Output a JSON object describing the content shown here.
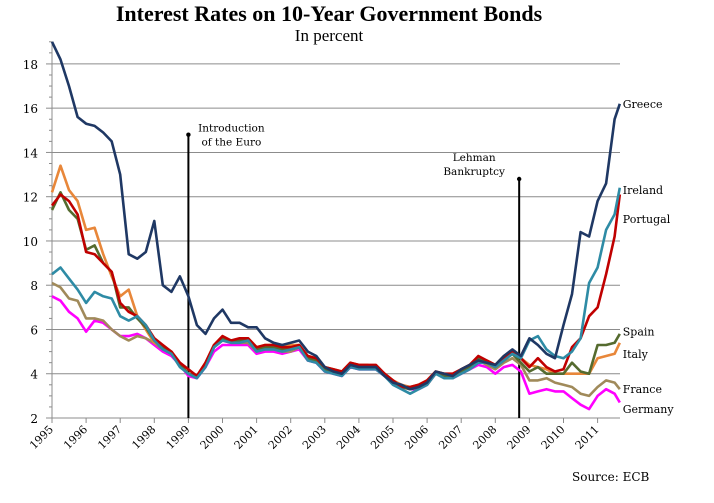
{
  "chart_data": {
    "type": "line",
    "title": "Interest Rates on 10-Year Government Bonds",
    "subtitle": "In percent",
    "xlabel": "",
    "ylabel": "",
    "xlim": [
      1995,
      2011.7
    ],
    "ylim": [
      2,
      19
    ],
    "yticks": [
      2,
      4,
      6,
      8,
      10,
      12,
      14,
      16,
      18
    ],
    "xticks": [
      1995,
      1996,
      1997,
      1998,
      1999,
      2000,
      2001,
      2002,
      2003,
      2004,
      2005,
      2006,
      2007,
      2008,
      2009,
      2010,
      2011
    ],
    "grid": true,
    "source": "Source: ECB",
    "annotations": [
      {
        "x": 1999.0,
        "y": 14.8,
        "lines": [
          "Introduction",
          "of the Euro"
        ]
      },
      {
        "x": 2008.7,
        "y": 12.8,
        "lines": [
          "Lehman",
          "Bankruptcy"
        ]
      }
    ],
    "series": [
      {
        "name": "Germany",
        "color": "#ff00ff",
        "label_y": 2.4,
        "x": [
          1995,
          1995.25,
          1995.5,
          1995.75,
          1996,
          1996.25,
          1996.5,
          1996.75,
          1997,
          1997.25,
          1997.5,
          1997.75,
          1998,
          1998.25,
          1998.5,
          1998.75,
          1999,
          1999.25,
          1999.5,
          1999.75,
          2000,
          2000.25,
          2000.5,
          2000.75,
          2001,
          2001.25,
          2001.5,
          2001.75,
          2002,
          2002.25,
          2002.5,
          2002.75,
          2003,
          2003.25,
          2003.5,
          2003.75,
          2004,
          2004.25,
          2004.5,
          2004.75,
          2005,
          2005.25,
          2005.5,
          2005.75,
          2006,
          2006.25,
          2006.5,
          2006.75,
          2007,
          2007.25,
          2007.5,
          2007.75,
          2008,
          2008.25,
          2008.5,
          2008.75,
          2009,
          2009.25,
          2009.5,
          2009.75,
          2010,
          2010.25,
          2010.5,
          2010.75,
          2011,
          2011.25,
          2011.5,
          2011.65
        ],
        "y": [
          7.5,
          7.3,
          6.8,
          6.5,
          5.9,
          6.4,
          6.3,
          6.0,
          5.7,
          5.7,
          5.8,
          5.6,
          5.3,
          5.0,
          4.8,
          4.4,
          3.9,
          3.8,
          4.3,
          5.0,
          5.3,
          5.3,
          5.3,
          5.3,
          4.9,
          5.0,
          5.0,
          4.9,
          5.0,
          5.1,
          4.6,
          4.5,
          4.1,
          4.0,
          3.9,
          4.3,
          4.2,
          4.2,
          4.2,
          3.9,
          3.6,
          3.4,
          3.3,
          3.3,
          3.5,
          4.0,
          3.9,
          3.8,
          4.0,
          4.2,
          4.4,
          4.3,
          4.0,
          4.3,
          4.4,
          4.1,
          3.1,
          3.2,
          3.3,
          3.2,
          3.2,
          2.9,
          2.6,
          2.4,
          3.0,
          3.3,
          3.1,
          2.7
        ]
      },
      {
        "name": "France",
        "color": "#a08a5a",
        "label_y": 3.3,
        "x": [
          1995,
          1995.25,
          1995.5,
          1995.75,
          1996,
          1996.25,
          1996.5,
          1996.75,
          1997,
          1997.25,
          1997.5,
          1997.75,
          1998,
          1998.25,
          1998.5,
          1998.75,
          1999,
          1999.25,
          1999.5,
          1999.75,
          2000,
          2000.25,
          2000.5,
          2000.75,
          2001,
          2001.25,
          2001.5,
          2001.75,
          2002,
          2002.25,
          2002.5,
          2002.75,
          2003,
          2003.25,
          2003.5,
          2003.75,
          2004,
          2004.25,
          2004.5,
          2004.75,
          2005,
          2005.25,
          2005.5,
          2005.75,
          2006,
          2006.25,
          2006.5,
          2006.75,
          2007,
          2007.25,
          2007.5,
          2007.75,
          2008,
          2008.25,
          2008.5,
          2008.75,
          2009,
          2009.25,
          2009.5,
          2009.75,
          2010,
          2010.25,
          2010.5,
          2010.75,
          2011,
          2011.25,
          2011.5,
          2011.65
        ],
        "y": [
          8.1,
          7.9,
          7.4,
          7.3,
          6.5,
          6.5,
          6.4,
          6.0,
          5.7,
          5.5,
          5.7,
          5.6,
          5.4,
          5.1,
          4.9,
          4.4,
          4.0,
          3.9,
          4.4,
          5.2,
          5.5,
          5.4,
          5.4,
          5.4,
          5.0,
          5.1,
          5.1,
          5.0,
          5.0,
          5.2,
          4.7,
          4.6,
          4.2,
          4.1,
          4.0,
          4.4,
          4.3,
          4.3,
          4.3,
          4.0,
          3.6,
          3.4,
          3.3,
          3.4,
          3.5,
          4.0,
          3.9,
          3.8,
          4.1,
          4.3,
          4.6,
          4.4,
          4.2,
          4.5,
          4.7,
          4.4,
          3.7,
          3.7,
          3.8,
          3.6,
          3.5,
          3.4,
          3.1,
          3.0,
          3.4,
          3.7,
          3.6,
          3.3
        ]
      },
      {
        "name": "Italy",
        "color": "#e8873a",
        "label_y": 4.9,
        "x": [
          1995,
          1995.25,
          1995.5,
          1995.75,
          1996,
          1996.25,
          1996.5,
          1996.75,
          1997,
          1997.25,
          1997.5,
          1997.75,
          1998,
          1998.25,
          1998.5,
          1998.75,
          1999,
          1999.25,
          1999.5,
          1999.75,
          2000,
          2000.25,
          2000.5,
          2000.75,
          2001,
          2001.25,
          2001.5,
          2001.75,
          2002,
          2002.25,
          2002.5,
          2002.75,
          2003,
          2003.25,
          2003.5,
          2003.75,
          2004,
          2004.25,
          2004.5,
          2004.75,
          2005,
          2005.25,
          2005.5,
          2005.75,
          2006,
          2006.25,
          2006.5,
          2006.75,
          2007,
          2007.25,
          2007.5,
          2007.75,
          2008,
          2008.25,
          2008.5,
          2008.75,
          2009,
          2009.25,
          2009.5,
          2009.75,
          2010,
          2010.25,
          2010.5,
          2010.75,
          2011,
          2011.25,
          2011.5,
          2011.65
        ],
        "y": [
          12.2,
          13.4,
          12.3,
          11.8,
          10.5,
          10.6,
          9.4,
          8.4,
          7.5,
          7.8,
          6.6,
          6.0,
          5.4,
          5.2,
          4.9,
          4.4,
          4.0,
          3.9,
          4.5,
          5.3,
          5.7,
          5.5,
          5.5,
          5.6,
          5.2,
          5.3,
          5.3,
          5.2,
          5.3,
          5.3,
          4.8,
          4.7,
          4.3,
          4.2,
          4.1,
          4.5,
          4.4,
          4.4,
          4.3,
          4.0,
          3.7,
          3.5,
          3.4,
          3.5,
          3.7,
          4.1,
          4.0,
          3.9,
          4.2,
          4.4,
          4.7,
          4.6,
          4.4,
          4.8,
          5.0,
          4.7,
          4.4,
          4.3,
          4.2,
          4.0,
          4.0,
          4.0,
          4.0,
          4.0,
          4.7,
          4.8,
          4.9,
          5.4
        ]
      },
      {
        "name": "Spain",
        "color": "#556b2f",
        "label_y": 5.9,
        "x": [
          1995,
          1995.25,
          1995.5,
          1995.75,
          1996,
          1996.25,
          1996.5,
          1996.75,
          1997,
          1997.25,
          1997.5,
          1997.75,
          1998,
          1998.25,
          1998.5,
          1998.75,
          1999,
          1999.25,
          1999.5,
          1999.75,
          2000,
          2000.25,
          2000.5,
          2000.75,
          2001,
          2001.25,
          2001.5,
          2001.75,
          2002,
          2002.25,
          2002.5,
          2002.75,
          2003,
          2003.25,
          2003.5,
          2003.75,
          2004,
          2004.25,
          2004.5,
          2004.75,
          2005,
          2005.25,
          2005.5,
          2005.75,
          2006,
          2006.25,
          2006.5,
          2006.75,
          2007,
          2007.25,
          2007.5,
          2007.75,
          2008,
          2008.25,
          2008.5,
          2008.75,
          2009,
          2009.25,
          2009.5,
          2009.75,
          2010,
          2010.25,
          2010.5,
          2010.75,
          2011,
          2011.25,
          2011.5,
          2011.65
        ],
        "y": [
          11.4,
          12.2,
          11.4,
          11.0,
          9.6,
          9.8,
          9.0,
          8.6,
          7.0,
          7.0,
          6.5,
          6.1,
          5.5,
          5.2,
          5.0,
          4.4,
          4.0,
          3.9,
          4.4,
          5.2,
          5.6,
          5.5,
          5.5,
          5.5,
          5.1,
          5.2,
          5.2,
          5.1,
          5.1,
          5.2,
          4.7,
          4.6,
          4.2,
          4.1,
          4.0,
          4.4,
          4.3,
          4.3,
          4.3,
          4.0,
          3.6,
          3.4,
          3.3,
          3.4,
          3.6,
          4.0,
          3.9,
          3.9,
          4.1,
          4.3,
          4.7,
          4.5,
          4.3,
          4.6,
          4.9,
          4.5,
          4.1,
          4.3,
          4.0,
          4.0,
          4.0,
          4.5,
          4.1,
          4.0,
          5.3,
          5.3,
          5.4,
          5.8
        ]
      },
      {
        "name": "Portugal",
        "color": "#c00000",
        "label_y": 11.0,
        "x": [
          1995,
          1995.25,
          1995.5,
          1995.75,
          1996,
          1996.25,
          1996.5,
          1996.75,
          1997,
          1997.25,
          1997.5,
          1997.75,
          1998,
          1998.25,
          1998.5,
          1998.75,
          1999,
          1999.25,
          1999.5,
          1999.75,
          2000,
          2000.25,
          2000.5,
          2000.75,
          2001,
          2001.25,
          2001.5,
          2001.75,
          2002,
          2002.25,
          2002.5,
          2002.75,
          2003,
          2003.25,
          2003.5,
          2003.75,
          2004,
          2004.25,
          2004.5,
          2004.75,
          2005,
          2005.25,
          2005.5,
          2005.75,
          2006,
          2006.25,
          2006.5,
          2006.75,
          2007,
          2007.25,
          2007.5,
          2007.75,
          2008,
          2008.25,
          2008.5,
          2008.75,
          2009,
          2009.25,
          2009.5,
          2009.75,
          2010,
          2010.25,
          2010.5,
          2010.75,
          2011,
          2011.25,
          2011.5,
          2011.65
        ],
        "y": [
          11.6,
          12.1,
          11.8,
          11.2,
          9.5,
          9.4,
          9.0,
          8.6,
          7.2,
          6.8,
          6.6,
          6.2,
          5.6,
          5.3,
          5.0,
          4.5,
          4.2,
          3.9,
          4.5,
          5.3,
          5.7,
          5.5,
          5.6,
          5.6,
          5.2,
          5.3,
          5.3,
          5.2,
          5.2,
          5.3,
          4.8,
          4.7,
          4.3,
          4.2,
          4.1,
          4.5,
          4.4,
          4.4,
          4.4,
          4.0,
          3.7,
          3.4,
          3.4,
          3.5,
          3.7,
          4.1,
          4.0,
          4.0,
          4.2,
          4.4,
          4.8,
          4.6,
          4.4,
          4.7,
          5.0,
          4.7,
          4.3,
          4.7,
          4.3,
          4.1,
          4.2,
          5.2,
          5.6,
          6.6,
          7.0,
          8.5,
          10.2,
          12.1
        ]
      },
      {
        "name": "Ireland",
        "color": "#2e8ba5",
        "label_y": 12.3,
        "x": [
          1995,
          1995.25,
          1995.5,
          1995.75,
          1996,
          1996.25,
          1996.5,
          1996.75,
          1997,
          1997.25,
          1997.5,
          1997.75,
          1998,
          1998.25,
          1998.5,
          1998.75,
          1999,
          1999.25,
          1999.5,
          1999.75,
          2000,
          2000.25,
          2000.5,
          2000.75,
          2001,
          2001.25,
          2001.5,
          2001.75,
          2002,
          2002.25,
          2002.5,
          2002.75,
          2003,
          2003.25,
          2003.5,
          2003.75,
          2004,
          2004.25,
          2004.5,
          2004.75,
          2005,
          2005.25,
          2005.5,
          2005.75,
          2006,
          2006.25,
          2006.5,
          2006.75,
          2007,
          2007.25,
          2007.5,
          2007.75,
          2008,
          2008.25,
          2008.5,
          2008.75,
          2009,
          2009.25,
          2009.5,
          2009.75,
          2010,
          2010.25,
          2010.5,
          2010.75,
          2011,
          2011.25,
          2011.5,
          2011.65
        ],
        "y": [
          8.5,
          8.8,
          8.3,
          7.8,
          7.2,
          7.7,
          7.5,
          7.4,
          6.6,
          6.4,
          6.6,
          6.2,
          5.5,
          5.1,
          4.9,
          4.3,
          4.0,
          3.8,
          4.3,
          5.2,
          5.5,
          5.4,
          5.4,
          5.5,
          5.0,
          5.1,
          5.1,
          5.0,
          5.1,
          5.2,
          4.6,
          4.5,
          4.1,
          4.0,
          3.9,
          4.3,
          4.2,
          4.2,
          4.2,
          3.9,
          3.5,
          3.3,
          3.1,
          3.3,
          3.5,
          4.0,
          3.8,
          3.8,
          4.0,
          4.2,
          4.5,
          4.5,
          4.3,
          4.6,
          4.9,
          4.7,
          5.5,
          5.7,
          5.1,
          4.8,
          4.7,
          5.0,
          5.6,
          8.1,
          8.8,
          10.5,
          11.2,
          12.4
        ]
      },
      {
        "name": "Greece",
        "color": "#1f3864",
        "label_y": 16.2,
        "x": [
          1995,
          1995.25,
          1995.5,
          1995.75,
          1996,
          1996.25,
          1996.5,
          1996.75,
          1997,
          1997.25,
          1997.5,
          1997.75,
          1998,
          1998.25,
          1998.5,
          1998.75,
          1999,
          1999.25,
          1999.5,
          1999.75,
          2000,
          2000.25,
          2000.5,
          2000.75,
          2001,
          2001.25,
          2001.5,
          2001.75,
          2002,
          2002.25,
          2002.5,
          2002.75,
          2003,
          2003.25,
          2003.5,
          2003.75,
          2004,
          2004.25,
          2004.5,
          2004.75,
          2005,
          2005.25,
          2005.5,
          2005.75,
          2006,
          2006.25,
          2006.5,
          2006.75,
          2007,
          2007.25,
          2007.5,
          2007.75,
          2008,
          2008.25,
          2008.5,
          2008.75,
          2009,
          2009.25,
          2009.5,
          2009.75,
          2010,
          2010.25,
          2010.5,
          2010.75,
          2011,
          2011.25,
          2011.5,
          2011.65
        ],
        "y": [
          19.0,
          18.2,
          17.0,
          15.6,
          15.3,
          15.2,
          14.9,
          14.5,
          13.0,
          9.4,
          9.2,
          9.5,
          10.9,
          8.0,
          7.7,
          8.4,
          7.5,
          6.2,
          5.8,
          6.5,
          6.9,
          6.3,
          6.3,
          6.1,
          6.1,
          5.6,
          5.4,
          5.3,
          5.4,
          5.5,
          5.0,
          4.8,
          4.3,
          4.1,
          4.0,
          4.4,
          4.3,
          4.3,
          4.3,
          3.9,
          3.6,
          3.5,
          3.3,
          3.4,
          3.6,
          4.1,
          4.0,
          3.9,
          4.2,
          4.4,
          4.6,
          4.5,
          4.4,
          4.8,
          5.1,
          4.8,
          5.6,
          5.3,
          4.9,
          4.7,
          6.2,
          7.6,
          10.4,
          10.2,
          11.8,
          12.6,
          15.5,
          16.2
        ]
      }
    ]
  }
}
